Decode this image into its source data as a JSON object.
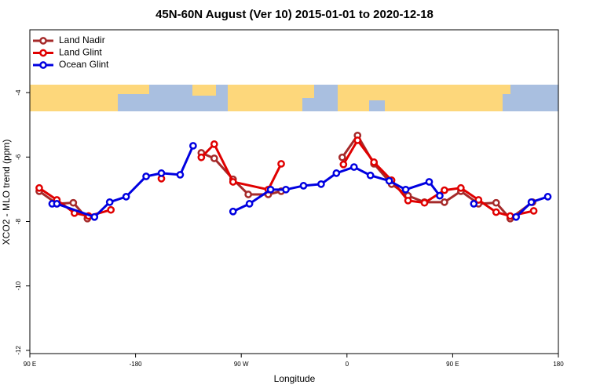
{
  "chart_data": {
    "type": "line",
    "title": "45N-60N August (Ver 10)   2015-01-01 to 2020-12-18",
    "x_label": "Longitude",
    "y_label": "XCO2 - MLO trend (ppm)",
    "xlim": [
      -270,
      180
    ],
    "xticks": [
      {
        "value": -270,
        "label": "90 E"
      },
      -180,
      {
        "value": -90,
        "label": "90 W"
      },
      0,
      {
        "value": 90,
        "label": "90 E"
      },
      180
    ],
    "ylim": [
      -12.1,
      -2.05
    ],
    "yticks": [
      -4,
      -6,
      -8,
      -10,
      -12
    ],
    "legend": "upper left",
    "series": [
      {
        "name": "Land Nadir",
        "color": "#a52a2a",
        "x": [
          -262,
          -247,
          -233,
          -221,
          null,
          -124,
          -113,
          -97,
          -84,
          -67,
          -56,
          null,
          -4,
          9,
          23,
          38,
          52,
          66,
          83,
          97,
          112,
          127,
          139,
          158
        ],
        "values": [
          -7.06,
          -7.45,
          -7.42,
          -7.91,
          null,
          -5.87,
          -6.04,
          -6.69,
          -7.16,
          -7.16,
          -7.06,
          null,
          -6.01,
          -5.33,
          -6.21,
          -6.84,
          -7.2,
          -7.4,
          -7.4,
          -7.06,
          -7.45,
          -7.42,
          -7.91,
          -7.4
        ]
      },
      {
        "name": "Land Glint",
        "color": "#e00000",
        "x": [
          -262,
          -247,
          -232,
          -220,
          -201,
          null,
          -158,
          null,
          -124,
          -113,
          -97,
          -67,
          -56,
          null,
          -3,
          9,
          23,
          38,
          52,
          66,
          83,
          97,
          112,
          127,
          139,
          159
        ],
        "values": [
          -6.96,
          -7.33,
          -7.74,
          -7.83,
          -7.64,
          null,
          -6.67,
          null,
          -6.01,
          -5.6,
          -6.77,
          -7.01,
          -6.21,
          null,
          -6.23,
          -5.48,
          -6.16,
          -6.72,
          -7.35,
          -7.42,
          -7.03,
          -6.96,
          -7.33,
          -7.71,
          -7.83,
          -7.67
        ]
      },
      {
        "name": "Ocean Glint",
        "color": "#0000e0",
        "x": [
          -251,
          -247,
          -215,
          -202,
          -188,
          -171,
          -158,
          -142,
          -131,
          null,
          -97,
          -83,
          -65,
          -52,
          -37,
          -22,
          -9,
          6,
          20,
          36,
          50,
          70,
          79,
          null,
          108,
          null,
          144,
          157,
          171
        ],
        "values": [
          -7.45,
          -7.45,
          -7.86,
          -7.4,
          -7.23,
          -6.6,
          -6.5,
          -6.55,
          -5.65,
          null,
          -7.69,
          -7.45,
          -7.01,
          -7.01,
          -6.89,
          -6.84,
          -6.5,
          -6.31,
          -6.57,
          -6.74,
          -7.01,
          -6.77,
          -7.2,
          null,
          -7.45,
          null,
          -7.86,
          -7.4,
          -7.23
        ]
      }
    ]
  }
}
